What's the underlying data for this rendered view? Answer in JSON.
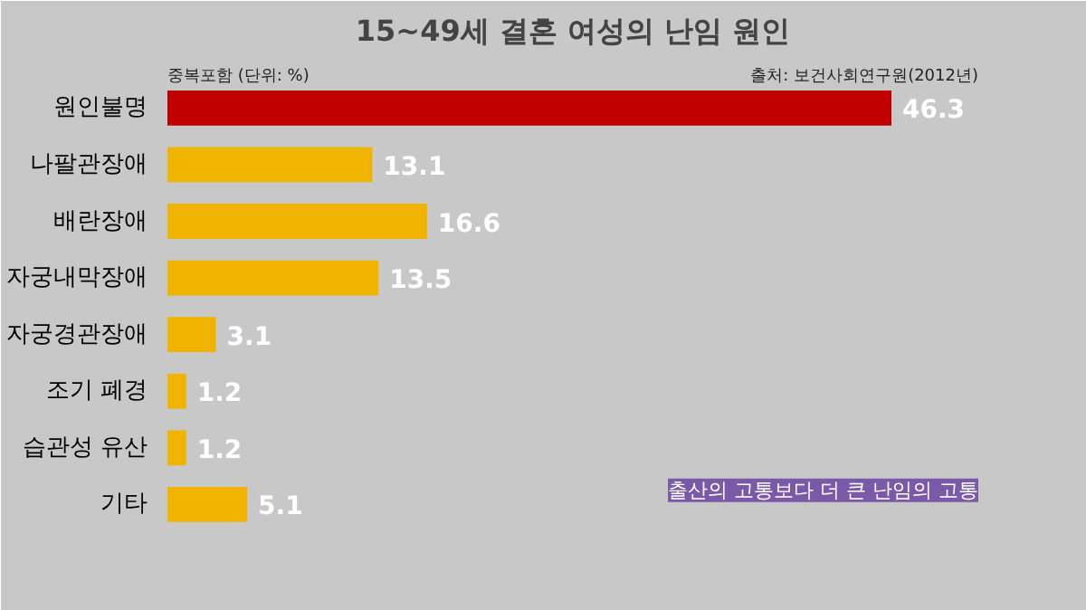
{
  "chart_data": {
    "type": "bar",
    "orientation": "horizontal",
    "title": "15~49세 결혼 여성의 난임 원인",
    "categories": [
      "원인불명",
      "나팔관장애",
      "배란장애",
      "자궁내막장애",
      "자궁경관장애",
      "조기 폐경",
      "습관성 유산",
      "기타"
    ],
    "values": [
      46.3,
      13.1,
      16.6,
      13.5,
      3.1,
      1.2,
      1.2,
      5.1
    ],
    "colors": [
      "#c00000",
      "#f0b400",
      "#f0b400",
      "#f0b400",
      "#f0b400",
      "#f0b400",
      "#f0b400",
      "#f0b400"
    ],
    "data_labels": true,
    "grid": false,
    "annotations": [
      "중복포함 (단위: %)",
      "출처: 보건사회연구원(2012년)",
      "출산의 고통보다 더 큰 난임의 고통"
    ]
  }
}
